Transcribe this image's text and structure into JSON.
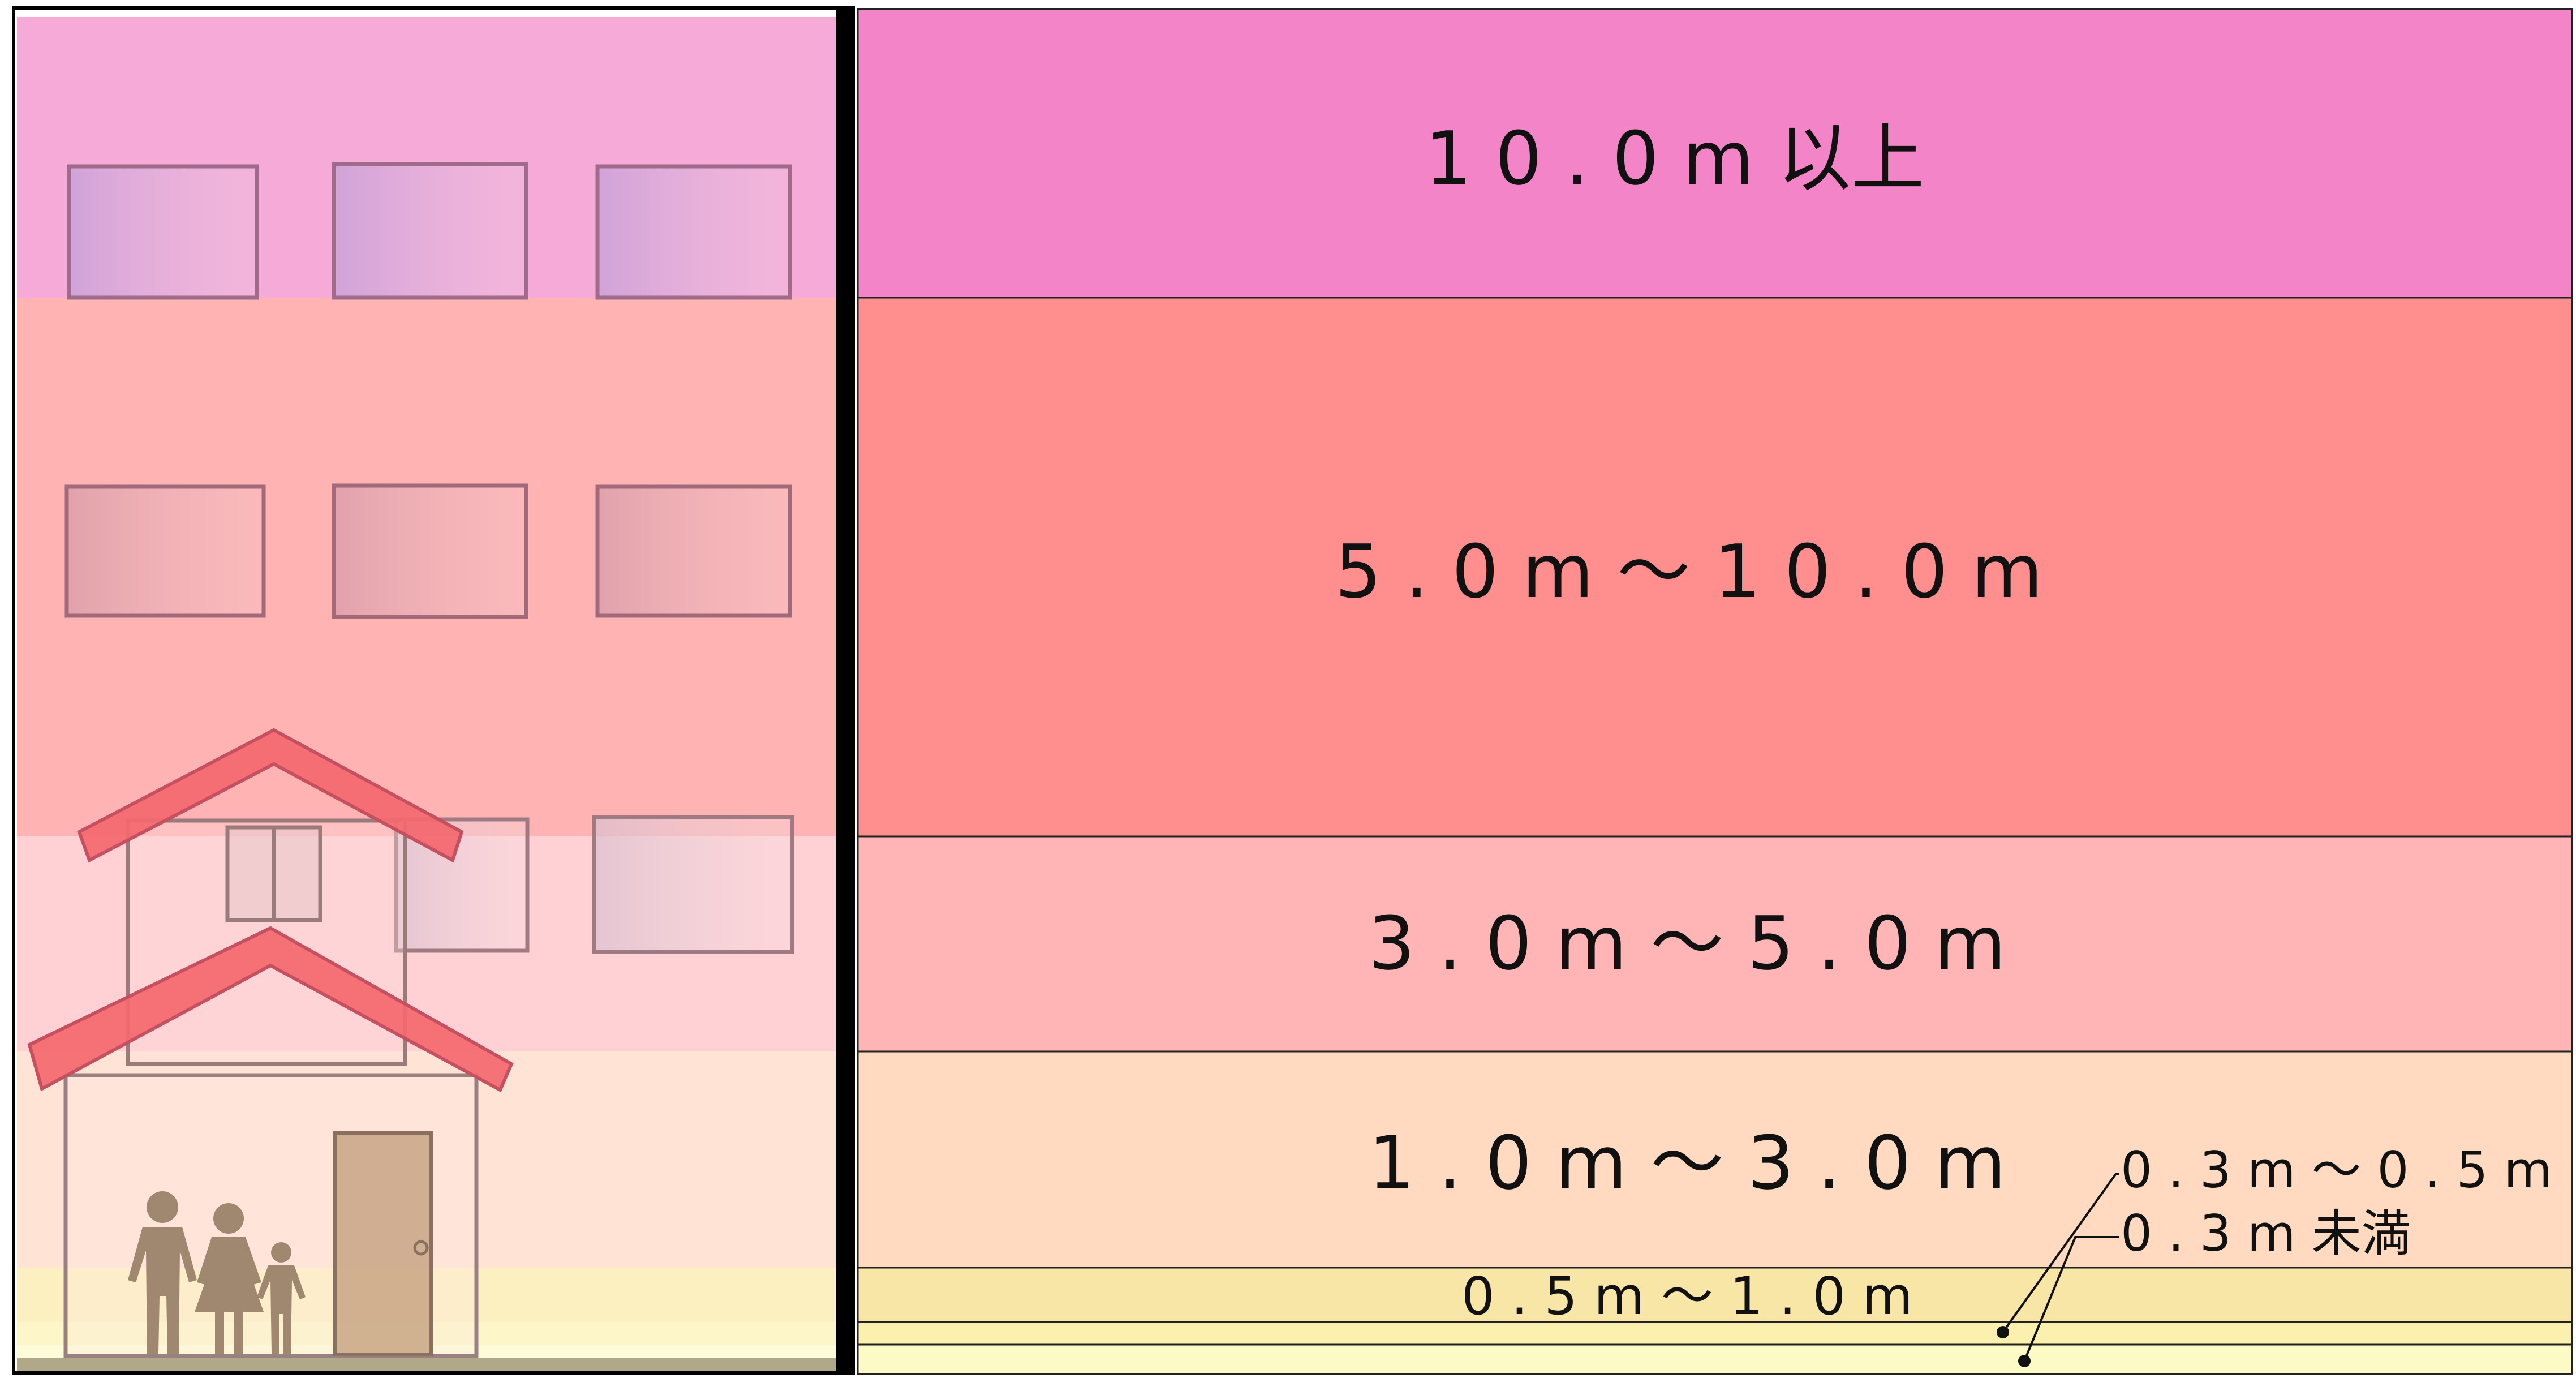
{
  "levels": [
    {
      "label": "10.0m以上",
      "display": "1 0 . 0 m 以上",
      "color": "#f384c8",
      "building_tint": "#f5aad8"
    },
    {
      "label": "5.0m～10.0m",
      "display": "5 . 0 m ～ 1 0 . 0 m",
      "color": "#ff8e8e",
      "building_tint": "#ffb3b3"
    },
    {
      "label": "3.0m～5.0m",
      "display": "3 . 0 m ～ 5 . 0 m",
      "color": "#ffb4b6",
      "building_tint": "#ffd0d4"
    },
    {
      "label": "1.0m～3.0m",
      "display": "1 . 0 m ～ 3 . 0 m",
      "color": "#ffdac0",
      "building_tint": "#ffe4d6"
    },
    {
      "label": "0.5m～1.0m",
      "display": "0 . 5 m ～ 1 . 0 m",
      "color": "#f8e6a6",
      "building_tint": "#fcefc0"
    },
    {
      "label": "0.3m～0.5m",
      "display": "0 . 3 m ～ 0 . 5 m",
      "color": "#fbf0ae",
      "building_tint": "#fdf6c8"
    },
    {
      "label": "0.3m未満",
      "display": "0 . 3 m 未満",
      "color": "#fdfbc5",
      "building_tint": "#fefcd8"
    }
  ],
  "icons": {
    "building": "apartment-building-icon",
    "houses": "house-icon",
    "family": "family-icon"
  }
}
